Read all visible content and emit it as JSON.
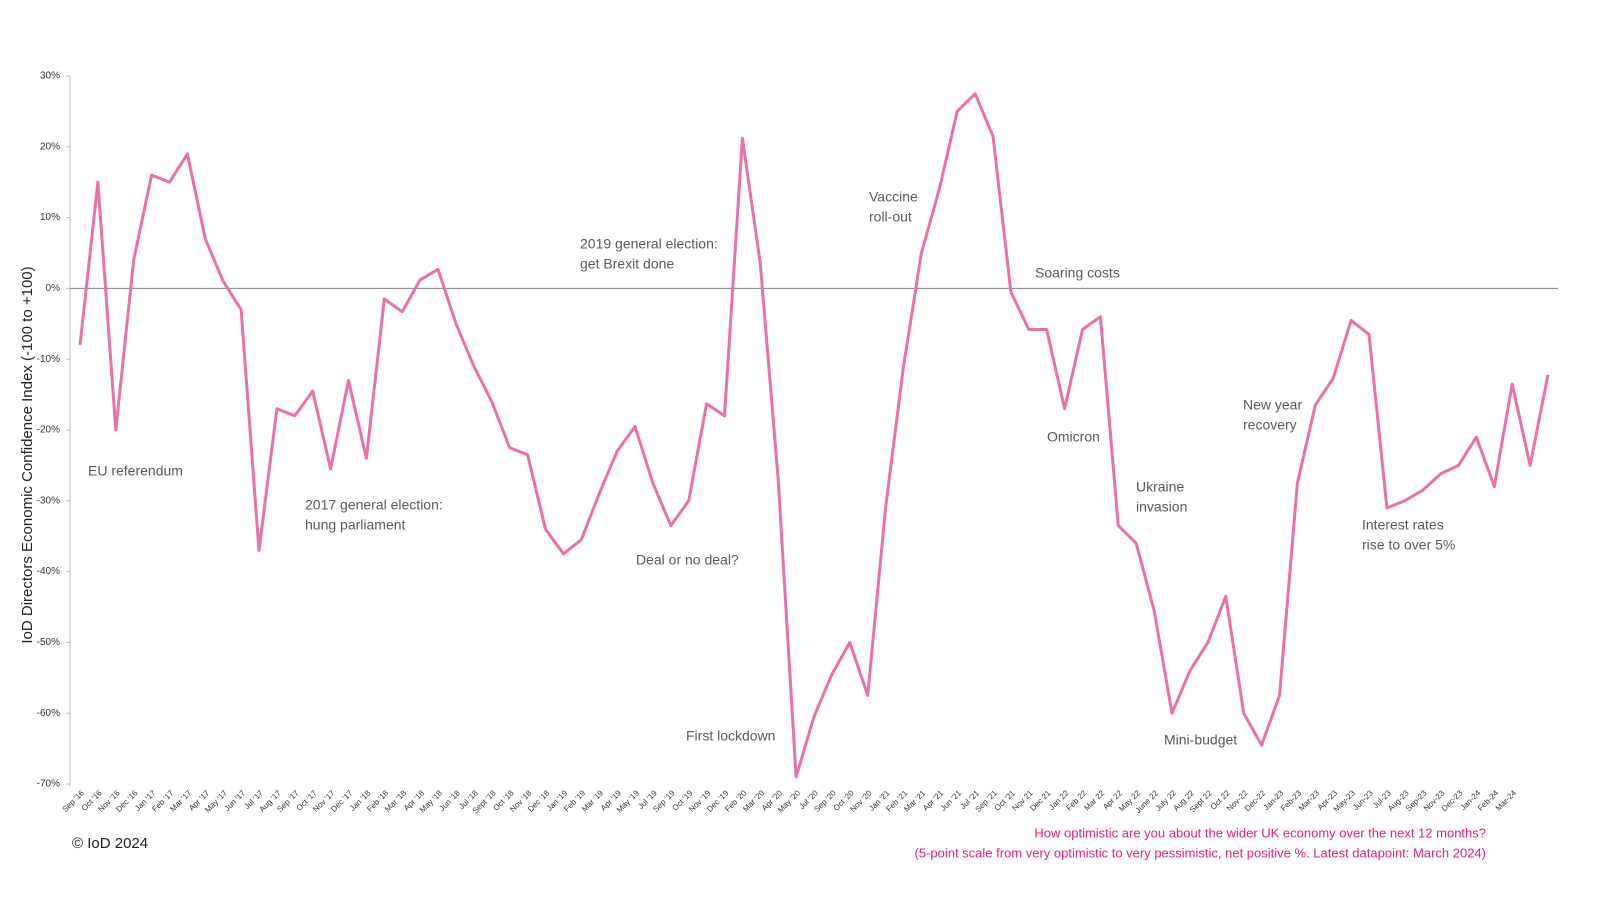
{
  "chart_data": {
    "type": "line",
    "y_axis_label": "IoD Directors Economic Confidence Index (-100 to +100)",
    "copyright": "© IoD 2024",
    "footnote": [
      "How optimistic are you about the wider UK economy over the next 12 months?",
      "(5-point scale from very optimistic to very pessimistic, net positive %. Latest datapoint: March 2024)"
    ],
    "annotations": [
      [
        "EU referendum"
      ],
      [
        "2017 general election:",
        "hung parliament"
      ],
      [
        "2019 general election:",
        "get Brexit done"
      ],
      [
        "Deal or no deal?"
      ],
      [
        "First lockdown"
      ],
      [
        "Vaccine",
        "roll-out"
      ],
      [
        "Soaring costs"
      ],
      [
        "Omicron"
      ],
      [
        "Ukraine",
        "invasion"
      ],
      [
        "Mini-budget"
      ],
      [
        "New year",
        "recovery"
      ],
      [
        "Interest rates",
        "rise to over 5%"
      ]
    ],
    "categories": [
      "Sep '16",
      "Oct '16",
      "Nov '16",
      "Dec '16",
      "Jan '17",
      "Feb '17",
      "Mar '17",
      "Apr '17",
      "May '17",
      "Jun '17",
      "Jul '17",
      "Aug '17",
      "Sep '17",
      "Oct '17",
      "Nov '17",
      "Dec '17",
      "Jan '18",
      "Feb '18",
      "Mar '18",
      "Apr '18",
      "May '18",
      "Jun '18",
      "Jul '18",
      "Sept '18",
      "Oct '18",
      "Nov '18",
      "Dec '18",
      "Jan '19",
      "Feb '19",
      "Mar '19",
      "Apr '19",
      "May '19",
      "Jul '19",
      "Sep '19",
      "Oct '19",
      "Nov '19",
      "Dec '19",
      "Feb '20",
      "Mar '20",
      "Apr '20",
      "May '20",
      "Jul '20",
      "Sep '20",
      "Oct '20",
      "Nov '20",
      "Jan '21",
      "Feb '21",
      "Mar '21",
      "Apr '21",
      "Jun '21",
      "Jul '21",
      "Sep '21",
      "Oct '21",
      "Nov 21",
      "Dec 21",
      "Jan 22",
      "Feb 22",
      "Mar 22",
      "Apr 22",
      "May 22",
      "June 22",
      "July 22",
      "Aug 22",
      "Sept 22",
      "Oct 22",
      "Nov-22",
      "Dec-22",
      "Jan-23",
      "Feb-23",
      "Mar-23",
      "Apr-23",
      "May-23",
      "Jun-23",
      "Jul-23",
      "Aug-23",
      "Sep-23",
      "Nov-23",
      "Dec-23",
      "Jan-24",
      "Feb-24",
      "Mar-24",
      null,
      null
    ],
    "series": [
      {
        "name": "Economic confidence",
        "color": "#ea70aa",
        "values": [
          -8,
          15,
          -20,
          4,
          16,
          15,
          19,
          7,
          1,
          -3,
          -37,
          -17,
          -18,
          -14.5,
          -25.5,
          -13,
          -24,
          -1.5,
          -3.3,
          1.2,
          2.7,
          -5,
          -11,
          -16,
          -22.5,
          -23.5,
          -34,
          -37.5,
          -35.5,
          -29,
          -23,
          -19.5,
          -27.5,
          -33.5,
          -30,
          -16.3,
          -18,
          21.2,
          3.5,
          -27,
          -69,
          -60.5,
          -54.5,
          -50,
          -57.5,
          -31,
          -11,
          5,
          14,
          25,
          27.5,
          21.5,
          -0.5,
          -5.8,
          -5.8,
          -17,
          -5.8,
          -4,
          -33.5,
          -36,
          -45.5,
          -60,
          -54,
          -50,
          -43.5,
          -60,
          -64.5,
          -57.5,
          -27.5,
          -16.5,
          -12.7,
          -4.5,
          -6.5,
          -31,
          -30,
          -28.5,
          -26.2,
          -25,
          -21,
          -28,
          -13.5,
          -25,
          -12.2
        ]
      }
    ],
    "ylim": [
      -70,
      30
    ],
    "yticks": [
      {
        "value": -70,
        "label": "-70%"
      },
      {
        "value": -60,
        "label": "-60%"
      },
      {
        "value": -50,
        "label": "-50%"
      },
      {
        "value": -40,
        "label": "-40%"
      },
      {
        "value": -30,
        "label": "-30%"
      },
      {
        "value": -20,
        "label": "-20%"
      },
      {
        "value": -10,
        "label": "-10%"
      },
      {
        "value": 0,
        "label": "0%"
      },
      {
        "value": 10,
        "label": "10%"
      },
      {
        "value": 20,
        "label": "20%"
      },
      {
        "value": 30,
        "label": "30%"
      }
    ],
    "zero_line": true
  }
}
